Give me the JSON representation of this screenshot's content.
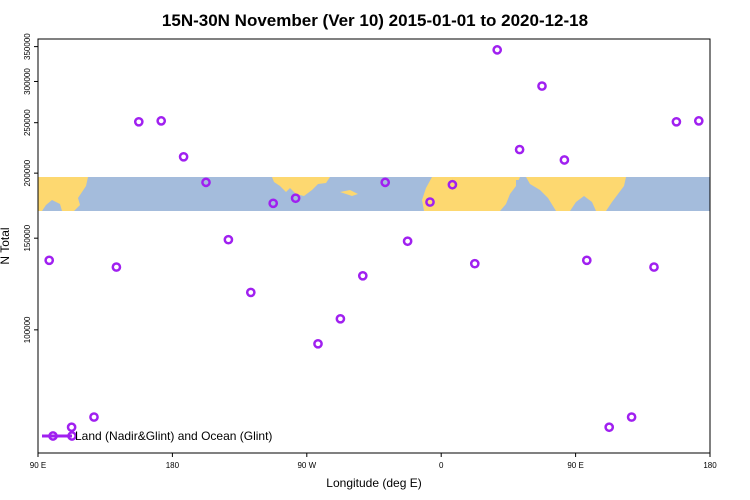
{
  "chart_data": {
    "type": "scatter",
    "title": "15N-30N November (Ver 10)   2015-01-01 to 2020-12-18",
    "xlabel": "Longitude (deg E)",
    "ylabel": "N Total",
    "x_ticks": [
      {
        "value": 90,
        "label": "90 E"
      },
      {
        "value": 180,
        "label": "180"
      },
      {
        "value": 270,
        "label": "90 W"
      },
      {
        "value": 360,
        "label": "0"
      },
      {
        "value": 450,
        "label": "90 E"
      },
      {
        "value": 540,
        "label": "180"
      }
    ],
    "xlim": [
      90,
      540
    ],
    "y_ticks": [
      100000,
      150000,
      200000,
      250000,
      300000,
      350000
    ],
    "ylim": [
      58000,
      362000
    ],
    "y_scale": "log",
    "legend": {
      "label": "Land (Nadir&Glint) and Ocean (Glint)",
      "position": "bottom-left"
    },
    "colors": {
      "series": "#a020f0",
      "ocean": "#a4bcdc",
      "land": "#fdd870"
    },
    "series": [
      {
        "name": "Land (Nadir&Glint) and Ocean (Glint)",
        "x": [
          97.5,
          112.5,
          127.5,
          142.5,
          157.5,
          172.5,
          187.5,
          202.5,
          217.5,
          232.5,
          247.5,
          262.5,
          277.5,
          292.5,
          307.5,
          322.5,
          337.5,
          352.5,
          367.5,
          382.5,
          397.5,
          412.5,
          427.5,
          442.5,
          457.5,
          472.5,
          487.5,
          502.5,
          517.5,
          532.5
        ],
        "y": [
          136000,
          65000,
          68000,
          132000,
          251000,
          252000,
          215000,
          192000,
          149000,
          118000,
          175000,
          179000,
          94000,
          105000,
          127000,
          192000,
          148000,
          176000,
          190000,
          134000,
          345000,
          222000,
          294000,
          212000,
          136000,
          65000,
          68000,
          132000,
          251000,
          252000
        ]
      }
    ]
  }
}
